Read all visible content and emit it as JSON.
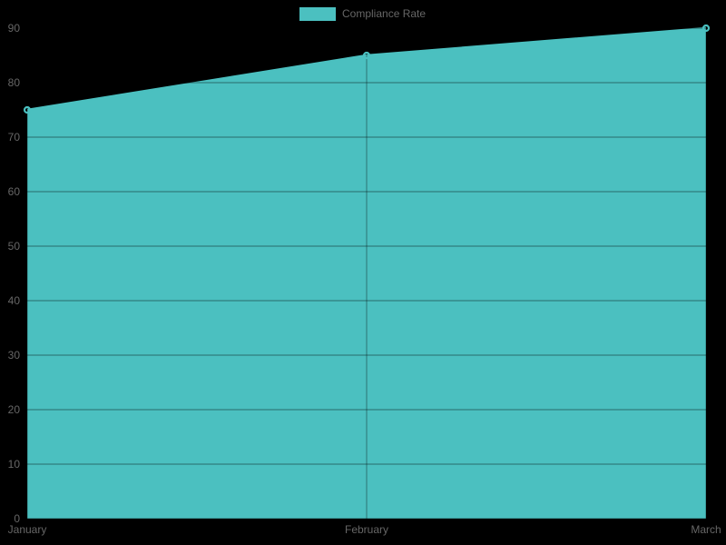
{
  "legend": {
    "label": "Compliance Rate"
  },
  "colors": {
    "series": "#4bc0c0",
    "text": "#666666",
    "grid": "rgba(0,0,0,0.25)",
    "background": "#000000"
  },
  "chart_data": {
    "type": "area",
    "title": "",
    "xlabel": "",
    "ylabel": "",
    "categories": [
      "January",
      "February",
      "March"
    ],
    "series": [
      {
        "name": "Compliance Rate",
        "values": [
          75,
          85,
          90
        ]
      }
    ],
    "ylim": [
      0,
      90
    ],
    "yticks": [
      0,
      10,
      20,
      30,
      40,
      50,
      60,
      70,
      80,
      90
    ],
    "grid": true,
    "legend_position": "top-center",
    "point_style": "hollow-circle"
  }
}
